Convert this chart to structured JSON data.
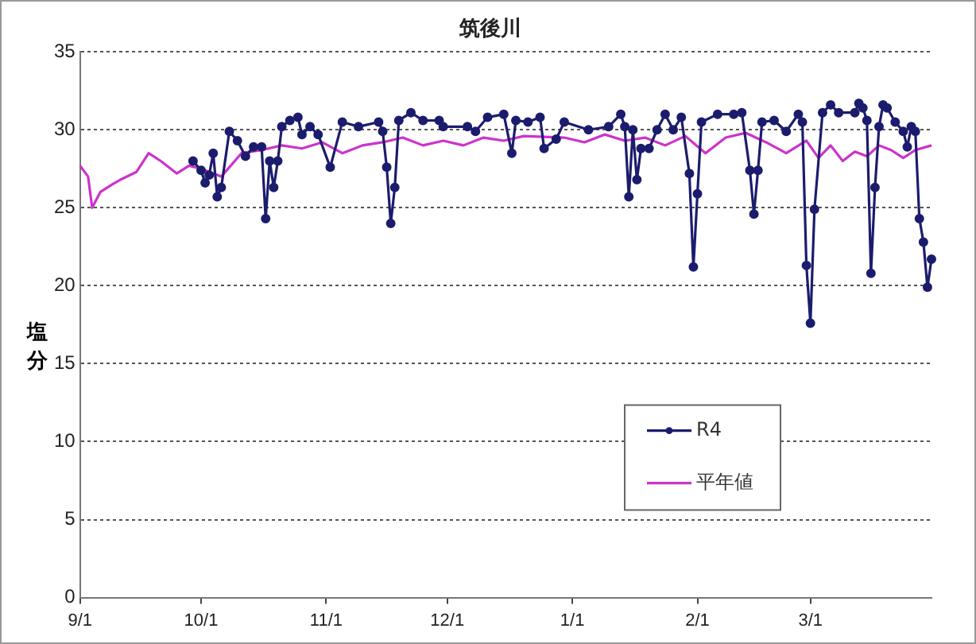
{
  "chart_data": {
    "type": "line",
    "title": "筑後川",
    "ylabel": "塩分",
    "categories": [
      "9/1",
      null,
      null,
      null,
      null,
      null,
      null,
      null,
      null,
      null,
      null,
      null,
      null,
      null,
      null,
      null,
      null,
      null,
      null,
      null,
      null,
      null,
      null,
      null,
      null,
      null,
      null,
      null,
      null,
      null,
      "10/1",
      null,
      null,
      null,
      null,
      null,
      null,
      null,
      null,
      null,
      null,
      null,
      null,
      null,
      null,
      null,
      null,
      null,
      null,
      null,
      null,
      null,
      null,
      null,
      null,
      null,
      null,
      null,
      null,
      null,
      null,
      "11/1",
      null,
      null,
      null,
      null,
      null,
      null,
      null,
      null,
      null,
      null,
      null,
      null,
      null,
      null,
      null,
      null,
      null,
      null,
      null,
      null,
      null,
      null,
      null,
      null,
      null,
      null,
      null,
      null,
      null,
      "12/1",
      null,
      null,
      null,
      null,
      null,
      null,
      null,
      null,
      null,
      null,
      null,
      null,
      null,
      null,
      null,
      null,
      null,
      null,
      null,
      null,
      null,
      null,
      null,
      null,
      null,
      null,
      null,
      null,
      null,
      null,
      "1/1",
      null,
      null,
      null,
      null,
      null,
      null,
      null,
      null,
      null,
      null,
      null,
      null,
      null,
      null,
      null,
      null,
      null,
      null,
      null,
      null,
      null,
      null,
      null,
      null,
      null,
      null,
      null,
      null,
      null,
      null,
      "2/1",
      null,
      null,
      null,
      null,
      null,
      null,
      null,
      null,
      null,
      null,
      null,
      null,
      null,
      null,
      null,
      null,
      null,
      null,
      null,
      null,
      null,
      null,
      null,
      null,
      null,
      null,
      null,
      "3/1",
      null,
      null,
      null,
      null,
      null,
      null,
      null,
      null,
      null,
      null,
      null,
      null,
      null,
      null,
      null,
      null,
      null,
      null,
      null,
      null,
      null,
      null,
      null,
      null,
      null,
      null,
      null,
      null,
      null,
      null
    ],
    "ylim": [
      0,
      35
    ],
    "yticks": [
      0,
      5,
      10,
      15,
      20,
      25,
      30,
      35
    ],
    "grid": "y",
    "legend": "bottom right",
    "series": [
      {
        "name": "R4",
        "color": "#1c1c6e",
        "marker": "circle",
        "values": [
          null,
          null,
          null,
          null,
          null,
          null,
          null,
          null,
          null,
          null,
          null,
          null,
          null,
          null,
          null,
          null,
          null,
          null,
          null,
          null,
          null,
          null,
          null,
          null,
          null,
          null,
          null,
          null,
          28.0,
          null,
          27.4,
          26.6,
          27.1,
          28.5,
          25.7,
          26.3,
          null,
          29.9,
          null,
          29.3,
          null,
          28.3,
          null,
          28.9,
          null,
          28.9,
          24.3,
          28.0,
          26.3,
          28.0,
          30.2,
          null,
          30.6,
          null,
          30.8,
          29.7,
          null,
          30.2,
          null,
          29.7,
          null,
          null,
          27.6,
          null,
          null,
          30.5,
          null,
          null,
          null,
          30.2,
          null,
          null,
          null,
          null,
          30.5,
          29.9,
          27.6,
          24.0,
          26.3,
          30.6,
          null,
          null,
          31.1,
          null,
          null,
          30.6,
          null,
          null,
          null,
          30.6,
          30.2,
          null,
          null,
          null,
          null,
          null,
          30.2,
          null,
          29.9,
          null,
          null,
          30.8,
          null,
          null,
          null,
          31.0,
          null,
          28.5,
          30.6,
          null,
          null,
          30.5,
          null,
          null,
          30.8,
          28.8,
          null,
          null,
          29.4,
          null,
          30.5,
          null,
          null,
          null,
          null,
          null,
          30.0,
          null,
          null,
          null,
          null,
          30.2,
          null,
          null,
          31.0,
          30.2,
          25.7,
          30.0,
          26.8,
          28.8,
          null,
          28.8,
          null,
          30.0,
          null,
          31.0,
          null,
          30.0,
          null,
          30.8,
          null,
          27.2,
          21.2,
          25.9,
          30.5,
          null,
          null,
          null,
          31.0,
          null,
          null,
          null,
          31.0,
          null,
          31.1,
          null,
          27.4,
          24.6,
          27.4,
          30.5,
          null,
          null,
          30.6,
          null,
          null,
          29.9,
          null,
          null,
          31.0,
          30.5,
          21.3,
          17.6,
          24.9,
          null,
          31.1,
          null,
          31.6,
          null,
          31.1,
          null,
          null,
          null,
          31.1,
          31.7,
          31.4,
          30.6,
          20.8,
          26.3,
          30.2,
          31.6,
          31.4,
          null,
          30.5,
          null,
          29.9,
          28.9,
          30.2,
          29.9,
          24.3,
          22.8,
          19.9,
          21.7
        ]
      },
      {
        "name": "平年値",
        "color": "#cc33cc",
        "marker": "none",
        "values": [
          27.7,
          null,
          27.0,
          25.0,
          null,
          26.0,
          null,
          null,
          26.5,
          null,
          26.8,
          null,
          null,
          null,
          27.3,
          null,
          null,
          28.5,
          null,
          null,
          28.0,
          null,
          null,
          null,
          27.2,
          null,
          null,
          27.7,
          null,
          null,
          27.5,
          null,
          null,
          null,
          null,
          27.0,
          null,
          null,
          null,
          null,
          28.5,
          null,
          null,
          null,
          null,
          28.7,
          null,
          null,
          null,
          null,
          29.0,
          null,
          null,
          null,
          null,
          28.8,
          null,
          null,
          null,
          null,
          29.2,
          null,
          null,
          null,
          null,
          28.5,
          null,
          null,
          null,
          null,
          29.0,
          null,
          null,
          null,
          null,
          29.2,
          null,
          null,
          null,
          null,
          29.5,
          null,
          null,
          null,
          null,
          29.0,
          null,
          null,
          null,
          null,
          29.3,
          null,
          null,
          null,
          null,
          29.0,
          null,
          null,
          null,
          null,
          29.5,
          null,
          null,
          null,
          null,
          29.3,
          null,
          null,
          null,
          null,
          29.6,
          null,
          null,
          null,
          null,
          null,
          null,
          null,
          null,
          null,
          29.5,
          null,
          null,
          null,
          null,
          29.2,
          null,
          null,
          null,
          null,
          29.7,
          null,
          null,
          null,
          null,
          29.3,
          null,
          null,
          null,
          null,
          29.5,
          null,
          null,
          null,
          null,
          29.0,
          null,
          null,
          null,
          null,
          29.6,
          null,
          null,
          null,
          null,
          28.5,
          null,
          null,
          null,
          null,
          29.5,
          null,
          null,
          null,
          null,
          29.8,
          null,
          null,
          null,
          null,
          29.2,
          null,
          null,
          null,
          null,
          28.5,
          null,
          null,
          null,
          null,
          29.3,
          null,
          null,
          28.2,
          null,
          null,
          29.0,
          null,
          null,
          28.0,
          null,
          null,
          28.6,
          null,
          null,
          28.3,
          null,
          null,
          29.0,
          null,
          null,
          28.7,
          null,
          null,
          28.2,
          null,
          null,
          28.7,
          null,
          null,
          null,
          29.0
        ]
      }
    ]
  }
}
